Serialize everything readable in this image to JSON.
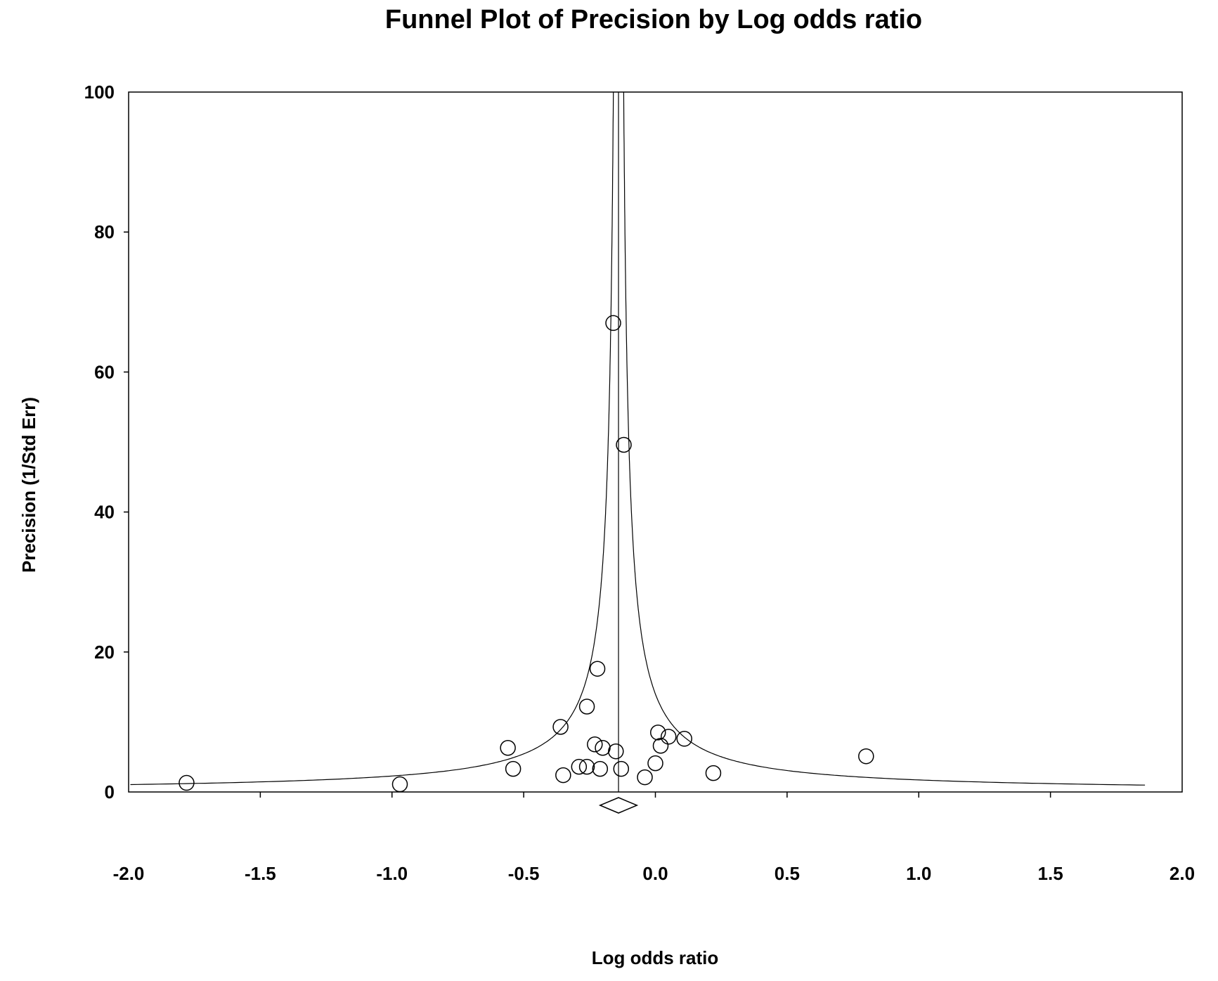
{
  "chart_data": {
    "type": "scatter",
    "title": "Funnel Plot of Precision by Log odds ratio",
    "xlabel": "Log odds ratio",
    "ylabel": "Precision (1/Std Err)",
    "xlim": [
      -2.0,
      2.0
    ],
    "ylim": [
      0,
      100
    ],
    "xticks": [
      "-2.0",
      "-1.5",
      "-1.0",
      "-0.5",
      "0.0",
      "0.5",
      "1.0",
      "1.5",
      "2.0"
    ],
    "yticks": [
      "0",
      "20",
      "40",
      "60",
      "80",
      "100"
    ],
    "grid": false,
    "legend": "none",
    "summary_effect": -0.14,
    "summary_ci": [
      -0.21,
      -0.07
    ],
    "funnel_limits": "95%",
    "points": [
      {
        "x": -1.78,
        "y": 1.3
      },
      {
        "x": -0.97,
        "y": 1.1
      },
      {
        "x": -0.56,
        "y": 6.3
      },
      {
        "x": -0.54,
        "y": 3.3
      },
      {
        "x": -0.36,
        "y": 9.3
      },
      {
        "x": -0.35,
        "y": 2.4
      },
      {
        "x": -0.29,
        "y": 3.6
      },
      {
        "x": -0.26,
        "y": 3.6
      },
      {
        "x": -0.26,
        "y": 12.2
      },
      {
        "x": -0.23,
        "y": 6.8
      },
      {
        "x": -0.22,
        "y": 17.6
      },
      {
        "x": -0.21,
        "y": 3.3
      },
      {
        "x": -0.2,
        "y": 6.3
      },
      {
        "x": -0.16,
        "y": 67.0
      },
      {
        "x": -0.15,
        "y": 5.8
      },
      {
        "x": -0.13,
        "y": 3.3
      },
      {
        "x": -0.12,
        "y": 49.6
      },
      {
        "x": -0.04,
        "y": 2.1
      },
      {
        "x": 0.0,
        "y": 4.1
      },
      {
        "x": 0.01,
        "y": 8.5
      },
      {
        "x": 0.02,
        "y": 6.6
      },
      {
        "x": 0.05,
        "y": 7.9
      },
      {
        "x": 0.11,
        "y": 7.6
      },
      {
        "x": 0.22,
        "y": 2.7
      },
      {
        "x": 0.8,
        "y": 5.1
      }
    ]
  }
}
